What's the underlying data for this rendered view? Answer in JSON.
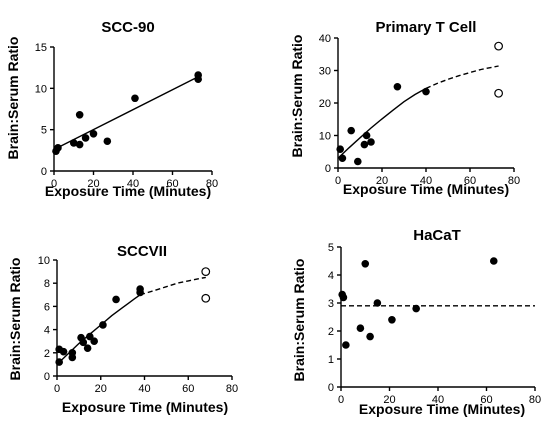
{
  "chart_data": [
    {
      "type": "scatter",
      "title": "SCC-90",
      "xlabel": "Exposure Time (Minutes)",
      "ylabel": "Brain:Serum Ratio",
      "xlim": [
        0,
        80
      ],
      "ylim": [
        0,
        15
      ],
      "xticks": [
        0,
        20,
        40,
        60,
        80
      ],
      "yticks": [
        0,
        5,
        10,
        15
      ],
      "points": [
        {
          "x": 1,
          "y": 2.4
        },
        {
          "x": 2,
          "y": 2.8
        },
        {
          "x": 10,
          "y": 3.4
        },
        {
          "x": 13,
          "y": 3.2
        },
        {
          "x": 13,
          "y": 6.8
        },
        {
          "x": 16,
          "y": 4.0
        },
        {
          "x": 20,
          "y": 4.5
        },
        {
          "x": 27,
          "y": 3.6
        },
        {
          "x": 41,
          "y": 8.8
        },
        {
          "x": 73,
          "y": 11.6
        },
        {
          "x": 73,
          "y": 11.1
        }
      ],
      "open_points": [],
      "fit_solid": [
        [
          0,
          2.6
        ],
        [
          73,
          11.4
        ]
      ],
      "fit_dashed": []
    },
    {
      "type": "scatter",
      "title": "Primary T Cell",
      "xlabel": "Exposure Time (Minutes)",
      "ylabel": "Brain:Serum Ratio",
      "xlim": [
        0,
        80
      ],
      "ylim": [
        0,
        40
      ],
      "xticks": [
        0,
        20,
        40,
        60,
        80
      ],
      "yticks": [
        0,
        10,
        20,
        30,
        40
      ],
      "points": [
        {
          "x": 1,
          "y": 5.8
        },
        {
          "x": 2,
          "y": 3.0
        },
        {
          "x": 6,
          "y": 11.5
        },
        {
          "x": 9,
          "y": 2.0
        },
        {
          "x": 12,
          "y": 7.2
        },
        {
          "x": 13,
          "y": 10.0
        },
        {
          "x": 15,
          "y": 8.0
        },
        {
          "x": 27,
          "y": 25.0
        },
        {
          "x": 40,
          "y": 23.5
        }
      ],
      "open_points": [
        {
          "x": 73,
          "y": 37.5
        },
        {
          "x": 73,
          "y": 23.0
        }
      ],
      "fit_solid": [
        [
          0,
          3.0
        ],
        [
          5,
          6.2
        ],
        [
          10,
          9.3
        ],
        [
          15,
          12.3
        ],
        [
          20,
          15.1
        ],
        [
          25,
          17.8
        ],
        [
          30,
          20.4
        ],
        [
          35,
          22.6
        ],
        [
          40,
          24.5
        ]
      ],
      "fit_dashed": [
        [
          40,
          24.5
        ],
        [
          45,
          26.0
        ],
        [
          50,
          27.3
        ],
        [
          55,
          28.4
        ],
        [
          60,
          29.4
        ],
        [
          65,
          30.3
        ],
        [
          70,
          31.0
        ],
        [
          73,
          31.4
        ]
      ]
    },
    {
      "type": "scatter",
      "title": "SCCVII",
      "xlabel": "Exposure Time (Minutes)",
      "ylabel": "Brain:Serum Ratio",
      "xlim": [
        0,
        80
      ],
      "ylim": [
        0,
        10
      ],
      "xticks": [
        0,
        20,
        40,
        60,
        80
      ],
      "yticks": [
        0,
        2,
        4,
        6,
        8,
        10
      ],
      "points": [
        {
          "x": 1,
          "y": 2.3
        },
        {
          "x": 1,
          "y": 1.2
        },
        {
          "x": 3,
          "y": 2.1
        },
        {
          "x": 7,
          "y": 1.6
        },
        {
          "x": 7,
          "y": 2.0
        },
        {
          "x": 11,
          "y": 3.3
        },
        {
          "x": 12,
          "y": 2.9
        },
        {
          "x": 14,
          "y": 2.4
        },
        {
          "x": 15,
          "y": 3.4
        },
        {
          "x": 17,
          "y": 3.0
        },
        {
          "x": 21,
          "y": 4.4
        },
        {
          "x": 27,
          "y": 6.6
        },
        {
          "x": 38,
          "y": 7.2
        },
        {
          "x": 38,
          "y": 7.5
        }
      ],
      "open_points": [
        {
          "x": 68,
          "y": 9.0
        },
        {
          "x": 68,
          "y": 6.7
        }
      ],
      "fit_solid": [
        [
          0,
          1.0
        ],
        [
          5,
          1.9
        ],
        [
          10,
          2.8
        ],
        [
          15,
          3.6
        ],
        [
          20,
          4.4
        ],
        [
          25,
          5.2
        ],
        [
          30,
          5.9
        ],
        [
          35,
          6.6
        ],
        [
          38,
          7.0
        ]
      ],
      "fit_dashed": [
        [
          38,
          7.0
        ],
        [
          45,
          7.4
        ],
        [
          50,
          7.7
        ],
        [
          55,
          8.0
        ],
        [
          60,
          8.2
        ],
        [
          65,
          8.4
        ],
        [
          68,
          8.5
        ]
      ]
    },
    {
      "type": "scatter",
      "title": "HaCaT",
      "xlabel": "Exposure Time (Minutes)",
      "ylabel": "Brain:Serum Ratio",
      "xlim": [
        0,
        80
      ],
      "ylim": [
        0,
        5
      ],
      "xticks": [
        0,
        20,
        40,
        60,
        80
      ],
      "yticks": [
        0,
        1,
        2,
        3,
        4,
        5
      ],
      "points": [
        {
          "x": 0.5,
          "y": 3.3
        },
        {
          "x": 1,
          "y": 3.2
        },
        {
          "x": 2,
          "y": 1.5
        },
        {
          "x": 8,
          "y": 2.1
        },
        {
          "x": 10,
          "y": 4.4
        },
        {
          "x": 12,
          "y": 1.8
        },
        {
          "x": 15,
          "y": 3.0
        },
        {
          "x": 21,
          "y": 2.4
        },
        {
          "x": 31,
          "y": 2.8
        },
        {
          "x": 63,
          "y": 4.5
        }
      ],
      "open_points": [],
      "fit_solid": [],
      "fit_dashed": [
        [
          0,
          2.9
        ],
        [
          80,
          2.9
        ]
      ]
    }
  ]
}
